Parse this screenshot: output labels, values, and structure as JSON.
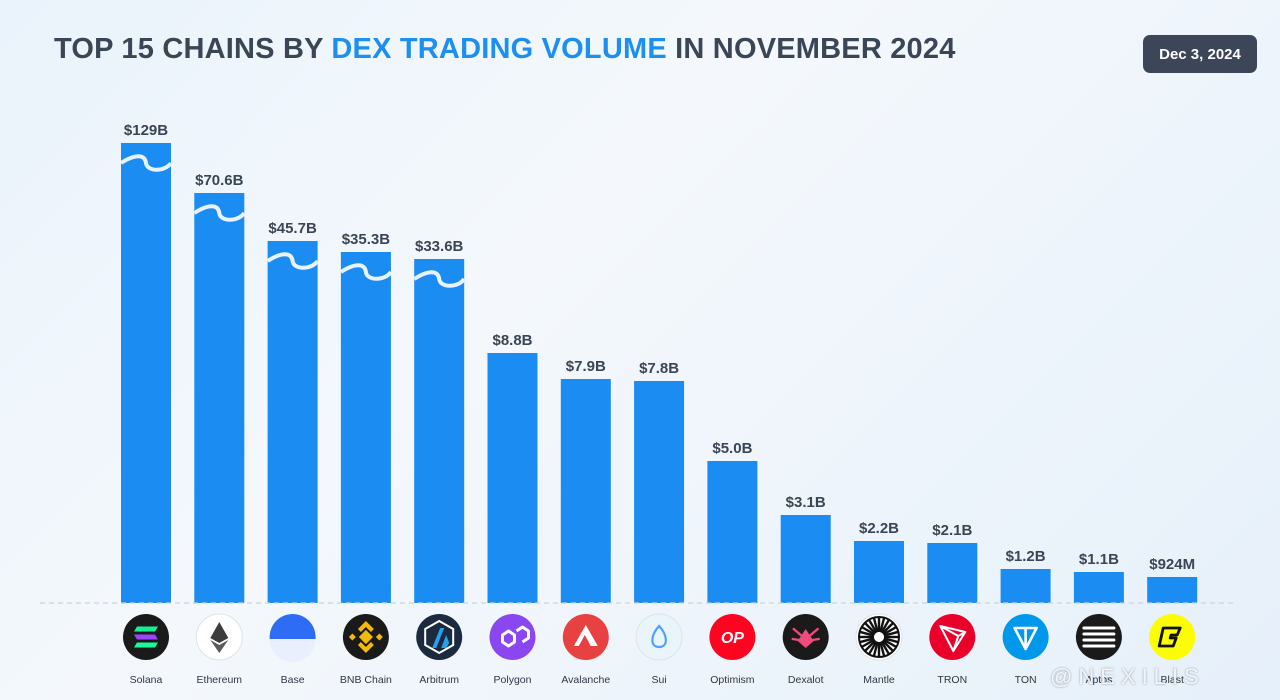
{
  "header": {
    "title_part1": "TOP 15 CHAINS BY ",
    "title_highlight": "DEX TRADING VOLUME",
    "title_part2": " IN NOVEMBER 2024",
    "date": "Dec 3, 2024"
  },
  "watermark": "@NEXILIS",
  "colors": {
    "bar": "#1a8cf2",
    "label": "#3a4556",
    "title_highlight": "#1d8ff0",
    "badge": "#3c4658"
  },
  "chart_data": {
    "type": "bar",
    "title": "TOP 15 CHAINS BY DEX TRADING VOLUME IN NOVEMBER 2024",
    "xlabel": "",
    "ylabel": "",
    "grid": false,
    "legend": "none",
    "axis_break_on_first_bars": true,
    "categories": [
      "Solana",
      "Ethereum",
      "Base",
      "BNB Chain",
      "Arbitrum",
      "Polygon",
      "Avalanche",
      "Sui",
      "Optimism",
      "Dexalot",
      "Mantle",
      "TRON",
      "TON",
      "Aptos",
      "Blast"
    ],
    "values_billion_usd": [
      129,
      70.6,
      45.7,
      35.3,
      33.6,
      8.8,
      7.9,
      7.8,
      5.0,
      3.1,
      2.2,
      2.1,
      1.2,
      1.1,
      0.924
    ],
    "data_labels": [
      "$129B",
      "$70.6B",
      "$45.7B",
      "$35.3B",
      "$33.6B",
      "$8.8B",
      "$7.9B",
      "$7.8B",
      "$5.0B",
      "$3.1B",
      "$2.2B",
      "$2.1B",
      "$1.2B",
      "$1.1B",
      "$924M"
    ],
    "icons": [
      "solana-icon",
      "ethereum-icon",
      "base-icon",
      "bnb-chain-icon",
      "arbitrum-icon",
      "polygon-icon",
      "avalanche-icon",
      "sui-icon",
      "optimism-icon",
      "dexalot-icon",
      "mantle-icon",
      "tron-icon",
      "ton-icon",
      "aptos-icon",
      "blast-icon"
    ],
    "icon_colors": [
      "#1a1a1a",
      "#ffffff",
      "#2e6cf5",
      "#1a1a1a",
      "#1b2a3f",
      "#8a46f0",
      "#e84142",
      "#eaf4fb",
      "#ff0420",
      "#1a1a1a",
      "#ffffff",
      "#eb0029",
      "#0098ea",
      "#1a1a1a",
      "#fcfc03"
    ]
  }
}
